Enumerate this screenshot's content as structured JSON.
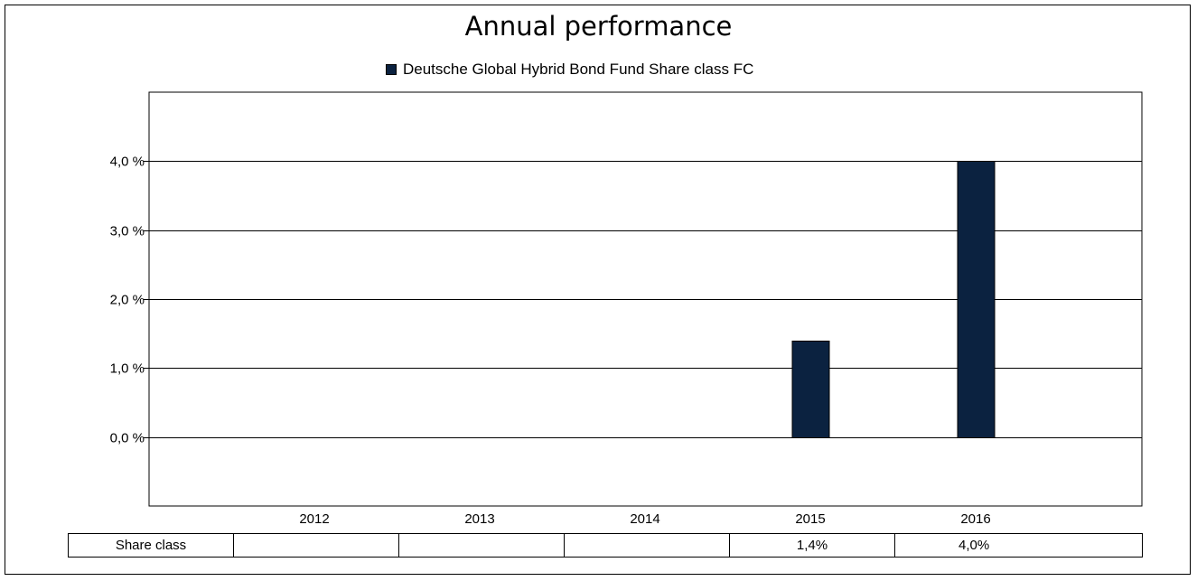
{
  "title": "Annual performance",
  "legend": {
    "label": "Deutsche Global Hybrid Bond Fund Share class FC",
    "color": "#0b2240"
  },
  "chart_data": {
    "type": "bar",
    "title": "Annual performance",
    "categories": [
      "2012",
      "2013",
      "2014",
      "2015",
      "2016"
    ],
    "series": [
      {
        "name": "Deutsche Global Hybrid Bond Fund Share class FC",
        "values": [
          null,
          null,
          null,
          1.4,
          4.0
        ]
      }
    ],
    "ylim": [
      -1.0,
      5.0
    ],
    "yticks": [
      0.0,
      1.0,
      2.0,
      3.0,
      4.0
    ],
    "ytick_labels": [
      "0,0 %",
      "1,0 %",
      "2,0 %",
      "3,0 %",
      "4,0 %"
    ],
    "grid": true,
    "legend_position": "top-center"
  },
  "table": {
    "row_label": "Share class",
    "cells": [
      "",
      "",
      "",
      "1,4%",
      "4,0%"
    ]
  }
}
